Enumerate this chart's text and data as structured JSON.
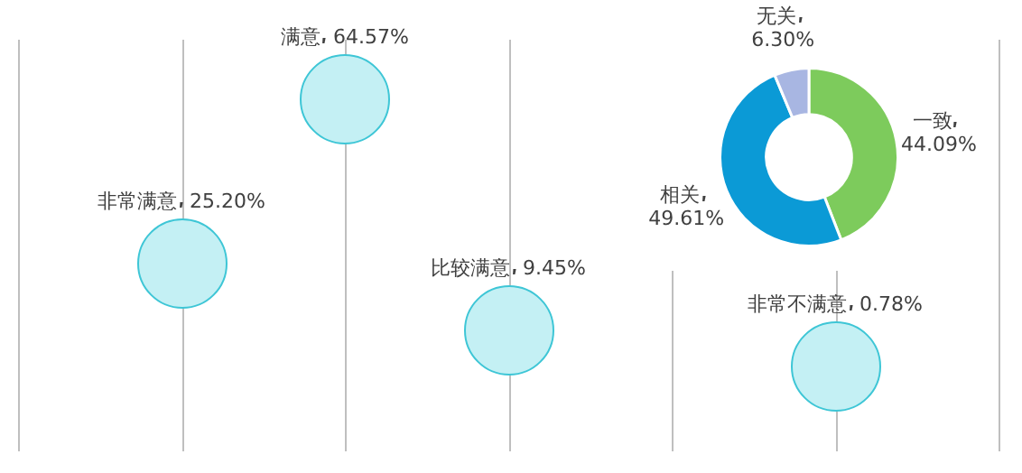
{
  "chart_data": [
    {
      "type": "other",
      "categories": [
        null,
        "非常满意",
        "满意",
        "比较满意",
        null,
        "非常不满意",
        null
      ],
      "values": [
        null,
        25.2,
        64.57,
        9.45,
        null,
        0.78,
        null
      ],
      "value_labels": [
        null,
        "25.20%",
        "64.57%",
        "9.45%",
        null,
        "0.78%",
        null
      ],
      "color": "#c4f0f4"
    },
    {
      "type": "donut",
      "categories": [
        "一致",
        "相关",
        "无关"
      ],
      "values": [
        44.09,
        49.61,
        6.3
      ],
      "colors": [
        "#7dcb5c",
        "#0b9ad6",
        "#a8b6e2"
      ],
      "value_labels": [
        "44.09%",
        "49.61%",
        "6.30%"
      ],
      "legend": false
    }
  ]
}
